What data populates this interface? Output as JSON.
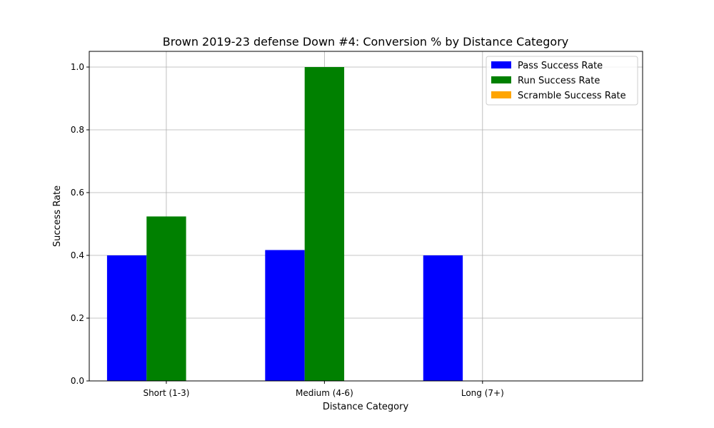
{
  "chart_data": {
    "type": "bar",
    "title": "Brown 2019-23 defense Down #4: Conversion % by Distance Category",
    "xlabel": "Distance Category",
    "ylabel": "Success Rate",
    "categories": [
      "Short (1-3)",
      "Medium (4-6)",
      "Long (7+)"
    ],
    "series": [
      {
        "name": "Pass Success Rate",
        "color": "#0000ff",
        "values": [
          0.4,
          0.417,
          0.4
        ]
      },
      {
        "name": "Run Success Rate",
        "color": "#008000",
        "values": [
          0.524,
          1.0,
          0.0
        ]
      },
      {
        "name": "Scramble Success Rate",
        "color": "#ffa500",
        "values": [
          0.0,
          0.0,
          0.0
        ]
      }
    ],
    "ylim": [
      0,
      1.05
    ],
    "yticks": [
      0.0,
      0.2,
      0.4,
      0.6,
      0.8,
      1.0
    ],
    "ytick_labels": [
      "0.0",
      "0.2",
      "0.4",
      "0.6",
      "0.8",
      "1.0"
    ],
    "grid": true,
    "legend_position": "top-right"
  }
}
